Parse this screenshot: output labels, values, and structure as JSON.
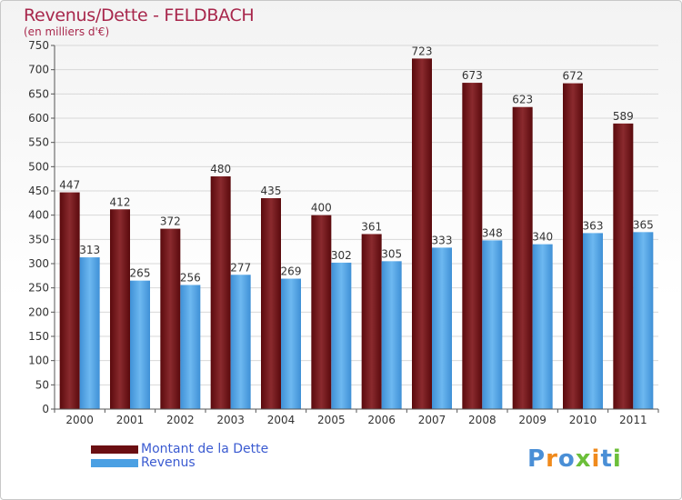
{
  "header": {
    "title": "Revenus/Dette - FELDBACH",
    "subtitle": "(en milliers d'€)"
  },
  "colors": {
    "dette": "#6b0f12",
    "revenus": "#4ba0e3",
    "title": "#a8274c",
    "legend_text": "#3b5bd1"
  },
  "legend": [
    {
      "label": "Montant de la Dette",
      "color": "#6b0f12"
    },
    {
      "label": "Revenus",
      "color": "#4ba0e3"
    }
  ],
  "logo": {
    "text": "Proxiti"
  },
  "chart_data": {
    "type": "bar",
    "categories": [
      "2000",
      "2001",
      "2002",
      "2003",
      "2004",
      "2005",
      "2006",
      "2007",
      "2008",
      "2009",
      "2010",
      "2011"
    ],
    "series": [
      {
        "name": "Montant de la Dette",
        "values": [
          447,
          412,
          372,
          480,
          435,
          400,
          361,
          723,
          673,
          623,
          672,
          589
        ]
      },
      {
        "name": "Revenus",
        "values": [
          313,
          265,
          256,
          277,
          269,
          302,
          305,
          333,
          348,
          340,
          363,
          365
        ]
      }
    ],
    "title": "Revenus/Dette - FELDBACH",
    "ylabel": "(en milliers d'€)",
    "ylim": [
      0,
      750
    ],
    "yticks": [
      0,
      50,
      100,
      150,
      200,
      250,
      300,
      350,
      400,
      450,
      500,
      550,
      600,
      650,
      700,
      750
    ],
    "grid": true,
    "legend_position": "bottom-left"
  }
}
